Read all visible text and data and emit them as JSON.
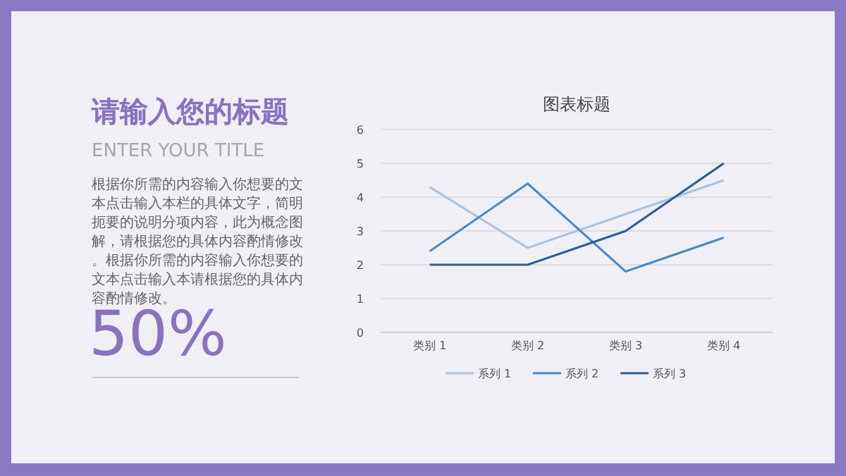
{
  "chart_data": [
    {
      "type": "other",
      "title": "请输入您的标题",
      "subtitle": "ENTER YOUR TITLE",
      "annotations": [
        "根据你所需的内容输入你想要的文本点击输入本栏的具体文字，简明扼要的说明分项内容，此为概念图解，请根据您的具体内容酌情修改。根据你所需的内容输入你想要的文本点击输入本请根据您的具体内容酌情修改。",
        "50%"
      ]
    },
    {
      "type": "line",
      "title": "图表标题",
      "categories": [
        "类别 1",
        "类别 2",
        "类别 3",
        "类别 4"
      ],
      "series": [
        {
          "name": "系列 1",
          "color": "#a9c4e4",
          "values": [
            4.3,
            2.5,
            3.5,
            4.5
          ]
        },
        {
          "name": "系列 2",
          "color": "#4a8cc8",
          "values": [
            2.4,
            4.4,
            1.8,
            2.8
          ]
        },
        {
          "name": "系列 3",
          "color": "#2e5f96",
          "values": [
            2,
            2,
            3,
            5
          ]
        }
      ],
      "ylim": [
        0,
        6
      ],
      "yticks": [
        0,
        1,
        2,
        3,
        4,
        5,
        6
      ],
      "grid": "y",
      "legend": "bottom",
      "marker": "none",
      "line_style": "solid"
    }
  ]
}
